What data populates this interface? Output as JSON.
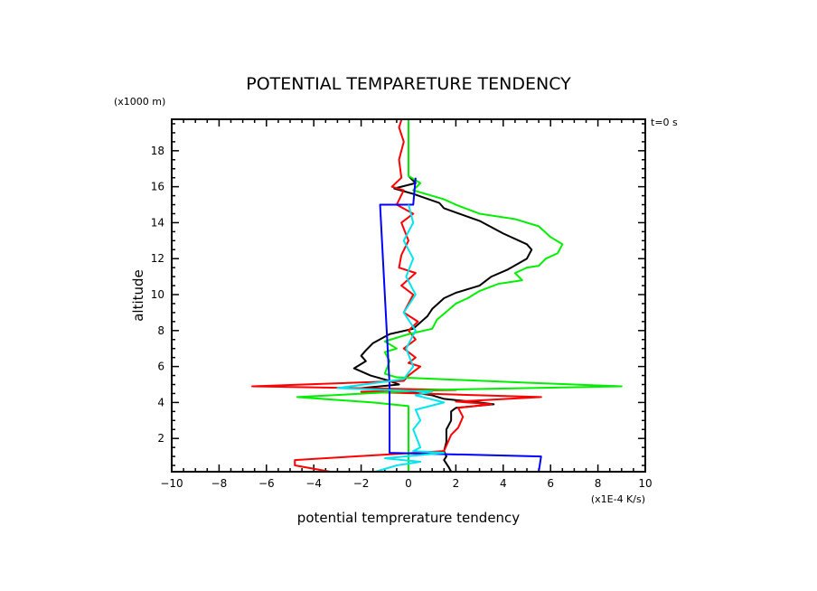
{
  "chart_data": {
    "type": "line",
    "title": "POTENTIAL TEMPARETURE TENDENCY",
    "xlabel": "potential temprerature tendency",
    "xunit": "(x1E-4 K/s)",
    "ylabel": "altitude",
    "yunit": "(x1000 m)",
    "annotation": "t=0 s",
    "xlim": [
      -10,
      10
    ],
    "ylim": [
      0.15,
      19.75
    ],
    "xticks": [
      -10,
      -8,
      -6,
      -4,
      -2,
      0,
      2,
      4,
      6,
      8,
      10
    ],
    "yticks": [
      2,
      4,
      6,
      8,
      10,
      12,
      14,
      16,
      18
    ],
    "grid": false,
    "series": [
      {
        "name": "black",
        "color": "#000000",
        "points": [
          [
            0,
            16.6
          ],
          [
            0.3,
            16.2
          ],
          [
            -0.6,
            15.9
          ],
          [
            0.2,
            15.6
          ],
          [
            1.3,
            15.1
          ],
          [
            1.5,
            14.8
          ],
          [
            3,
            14.1
          ],
          [
            4,
            13.4
          ],
          [
            5,
            12.8
          ],
          [
            5.2,
            12.5
          ],
          [
            5,
            12
          ],
          [
            4.2,
            11.4
          ],
          [
            3.5,
            11
          ],
          [
            3,
            10.5
          ],
          [
            2,
            10.1
          ],
          [
            1.5,
            9.8
          ],
          [
            1,
            9.2
          ],
          [
            0.8,
            8.8
          ],
          [
            0.2,
            8.1
          ],
          [
            -0.8,
            7.8
          ],
          [
            -1.5,
            7.3
          ],
          [
            -1.8,
            6.9
          ],
          [
            -2,
            6.6
          ],
          [
            -1.8,
            6.3
          ],
          [
            -2.3,
            5.9
          ],
          [
            -1.6,
            5.5
          ],
          [
            -0.8,
            5.2
          ],
          [
            -0.4,
            5
          ],
          [
            -2,
            4.8
          ],
          [
            0,
            4.6
          ],
          [
            1,
            4.4
          ],
          [
            1.5,
            4.2
          ],
          [
            3,
            4.0
          ],
          [
            3.6,
            3.9
          ],
          [
            2,
            3.7
          ],
          [
            1.8,
            3.5
          ],
          [
            1.8,
            3
          ],
          [
            1.6,
            2.5
          ],
          [
            1.6,
            1.8
          ],
          [
            1.5,
            1.3
          ],
          [
            1.6,
            1.0
          ],
          [
            1.5,
            0.8
          ],
          [
            1.7,
            0.4
          ],
          [
            1.8,
            0.15
          ]
        ]
      },
      {
        "name": "red",
        "color": "#ff0000",
        "points": [
          [
            -0.3,
            19.7
          ],
          [
            -0.4,
            19.3
          ],
          [
            -0.2,
            18.5
          ],
          [
            -0.4,
            17.5
          ],
          [
            -0.3,
            16.5
          ],
          [
            -0.7,
            16
          ],
          [
            -0.2,
            15.8
          ],
          [
            -0.5,
            15
          ],
          [
            0.2,
            14.5
          ],
          [
            -0.3,
            14
          ],
          [
            0,
            13
          ],
          [
            -0.3,
            12.2
          ],
          [
            -0.4,
            11.5
          ],
          [
            0.3,
            11.2
          ],
          [
            -0.3,
            10.5
          ],
          [
            0.2,
            10
          ],
          [
            -0.2,
            9
          ],
          [
            0.4,
            8.5
          ],
          [
            0,
            8
          ],
          [
            0.3,
            7.5
          ],
          [
            -0.2,
            7
          ],
          [
            0.3,
            6.5
          ],
          [
            0,
            6.2
          ],
          [
            0.5,
            6
          ],
          [
            0,
            5.5
          ],
          [
            -0.2,
            5.2
          ],
          [
            -6.6,
            4.9
          ],
          [
            2,
            4.7
          ],
          [
            -2,
            4.6
          ],
          [
            5.6,
            4.3
          ],
          [
            2,
            4.05
          ],
          [
            3.5,
            3.9
          ],
          [
            2.1,
            3.7
          ],
          [
            2.3,
            3.2
          ],
          [
            2.1,
            2.6
          ],
          [
            1.8,
            2.2
          ],
          [
            1.6,
            1.6
          ],
          [
            1.5,
            1.3
          ],
          [
            -1,
            1.1
          ],
          [
            -4.8,
            0.8
          ],
          [
            -4.8,
            0.5
          ],
          [
            -3.3,
            0.15
          ]
        ]
      },
      {
        "name": "green",
        "color": "#00ee00",
        "points": [
          [
            0,
            19.75
          ],
          [
            0,
            16.6
          ],
          [
            0.5,
            16.2
          ],
          [
            0.2,
            15.8
          ],
          [
            1.5,
            15.3
          ],
          [
            2,
            15
          ],
          [
            3,
            14.5
          ],
          [
            4.5,
            14.2
          ],
          [
            5.5,
            13.8
          ],
          [
            6,
            13.2
          ],
          [
            6.5,
            12.8
          ],
          [
            6.3,
            12.3
          ],
          [
            5.8,
            12
          ],
          [
            5.5,
            11.6
          ],
          [
            5,
            11.5
          ],
          [
            4.5,
            11.2
          ],
          [
            4.8,
            10.8
          ],
          [
            3.8,
            10.6
          ],
          [
            3,
            10.2
          ],
          [
            2.5,
            9.8
          ],
          [
            2,
            9.5
          ],
          [
            1.2,
            8.6
          ],
          [
            1,
            8.1
          ],
          [
            0,
            7.8
          ],
          [
            -1,
            7.4
          ],
          [
            -0.5,
            7
          ],
          [
            -1,
            6.8
          ],
          [
            -0.8,
            6.3
          ],
          [
            -1,
            5.6
          ],
          [
            -0.5,
            5.4
          ],
          [
            5,
            5.1
          ],
          [
            9,
            4.9
          ],
          [
            1,
            4.7
          ],
          [
            -4.7,
            4.3
          ],
          [
            -1.5,
            4
          ],
          [
            0,
            3.8
          ],
          [
            0,
            0.15
          ]
        ]
      },
      {
        "name": "blue",
        "color": "#0000ff",
        "points": [
          [
            0.3,
            16.5
          ],
          [
            0.2,
            15
          ],
          [
            -1.2,
            15
          ],
          [
            -1,
            10
          ],
          [
            -0.8,
            5
          ],
          [
            -0.8,
            1.2
          ],
          [
            5.6,
            1.0
          ],
          [
            5.5,
            0.15
          ]
        ]
      },
      {
        "name": "cyan",
        "color": "#00e5ee",
        "points": [
          [
            0,
            15
          ],
          [
            0.2,
            14
          ],
          [
            -0.2,
            13
          ],
          [
            0.2,
            12
          ],
          [
            -0.1,
            11
          ],
          [
            0.3,
            10
          ],
          [
            -0.2,
            9
          ],
          [
            0.3,
            8
          ],
          [
            -0.1,
            7
          ],
          [
            0.2,
            6
          ],
          [
            -0.2,
            5.3
          ],
          [
            -3,
            4.8
          ],
          [
            1,
            4.6
          ],
          [
            0.3,
            4.4
          ],
          [
            1.5,
            4
          ],
          [
            0.3,
            3.6
          ],
          [
            0.5,
            3
          ],
          [
            0.2,
            2.5
          ],
          [
            0.5,
            1.5
          ],
          [
            0.2,
            1.3
          ],
          [
            1.5,
            1.2
          ],
          [
            -1,
            0.9
          ],
          [
            0.5,
            0.7
          ],
          [
            -0.5,
            0.5
          ],
          [
            -1.4,
            0.15
          ]
        ]
      }
    ]
  }
}
